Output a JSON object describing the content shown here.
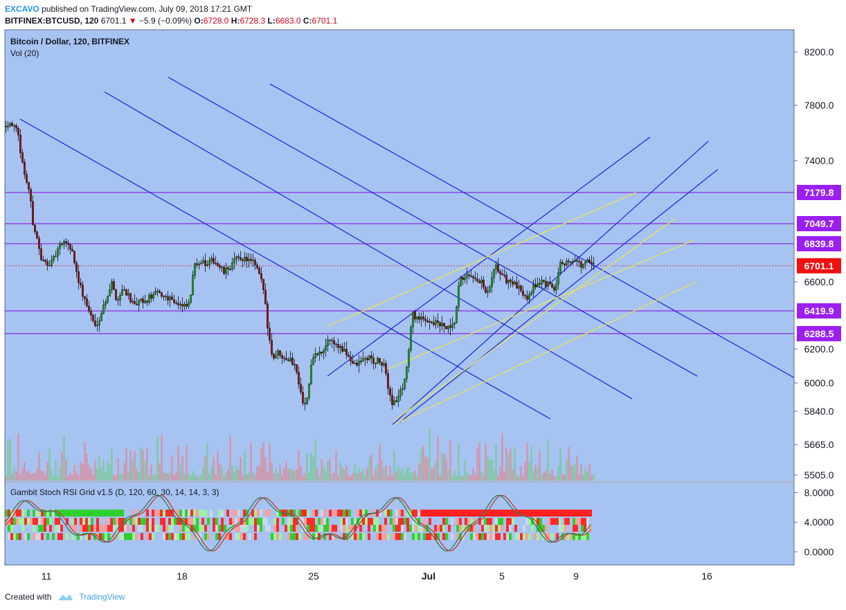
{
  "header": {
    "author": "EXCAVO",
    "published_text": "published on TradingView.com, July 09, 2018 17:21 GMT",
    "symbol": "BITFINEX:BTCUSD, 120",
    "last": "6701.1",
    "change": "−5.9 (−0.09%)",
    "o_label": "O:",
    "o": "6728.0",
    "h_label": "H:",
    "h": "6728.3",
    "l_label": "L:",
    "l": "6683.0",
    "c_label": "C:",
    "c": "6701.1"
  },
  "legend": {
    "title": "Bitcoin / Dollar, 120, BITFINEX",
    "volume": "Vol (20)"
  },
  "indicator": {
    "title": "Gambit Stoch RSI Grid v1.5 (D, 120, 60, 30, 14, 14, 3, 3)"
  },
  "footer": {
    "created_with": "Created with",
    "brand": "TradingView"
  },
  "colors": {
    "background": "#a7c3f2",
    "trendline": "#1a22d9",
    "channel": "#e8e84a",
    "level": "#8a2be2",
    "level_badge": "#9a1ff0",
    "last_badge": "#f01010",
    "candle_up": "#22a02a",
    "candle_down": "#8b1a1a"
  },
  "chart_data": [
    {
      "type": "candlestick",
      "symbol": "BITFINEX:BTCUSD",
      "interval": "120",
      "x_ticks": [
        "11",
        "18",
        "25",
        "Jul",
        "5",
        "9",
        "16"
      ],
      "y_ticks": [
        5505.0,
        5665.0,
        5840.0,
        6000.0,
        6200.0,
        6600.0,
        7400.0,
        7800.0,
        8200.0
      ],
      "y_tick_labels": [
        "5505.0",
        "5665.0",
        "5840.0",
        "6000.0",
        "6200.0",
        "6600.0",
        "7400.0",
        "7800.0",
        "8200.0"
      ],
      "ylim": [
        5480,
        8330
      ],
      "horizontal_levels": [
        {
          "value": 7179.8,
          "label": "7179.8"
        },
        {
          "value": 7049.7,
          "label": "7049.7"
        },
        {
          "value": 6839.8,
          "label": "6839.8"
        },
        {
          "value": 6419.9,
          "label": "6419.9"
        },
        {
          "value": 6288.5,
          "label": "6288.5"
        }
      ],
      "last_price": {
        "value": 6701.1,
        "label": "6701.1"
      },
      "price_path": [
        [
          0,
          7650
        ],
        [
          10,
          7680
        ],
        [
          20,
          7600
        ],
        [
          28,
          7350
        ],
        [
          36,
          7200
        ],
        [
          46,
          6950
        ],
        [
          54,
          6730
        ],
        [
          62,
          6720
        ],
        [
          70,
          6720
        ],
        [
          80,
          6820
        ],
        [
          90,
          6860
        ],
        [
          100,
          6780
        ],
        [
          106,
          6640
        ],
        [
          114,
          6520
        ],
        [
          122,
          6430
        ],
        [
          132,
          6330
        ],
        [
          140,
          6400
        ],
        [
          148,
          6500
        ],
        [
          156,
          6590
        ],
        [
          164,
          6480
        ],
        [
          172,
          6560
        ],
        [
          180,
          6520
        ],
        [
          188,
          6440
        ],
        [
          196,
          6480
        ],
        [
          204,
          6470
        ],
        [
          212,
          6510
        ],
        [
          222,
          6530
        ],
        [
          232,
          6510
        ],
        [
          242,
          6500
        ],
        [
          252,
          6460
        ],
        [
          260,
          6440
        ],
        [
          268,
          6460
        ],
        [
          276,
          6720
        ],
        [
          284,
          6730
        ],
        [
          294,
          6700
        ],
        [
          302,
          6740
        ],
        [
          310,
          6700
        ],
        [
          318,
          6660
        ],
        [
          326,
          6690
        ],
        [
          334,
          6740
        ],
        [
          344,
          6750
        ],
        [
          352,
          6740
        ],
        [
          360,
          6720
        ],
        [
          368,
          6660
        ],
        [
          376,
          6540
        ],
        [
          382,
          6300
        ],
        [
          388,
          6150
        ],
        [
          396,
          6180
        ],
        [
          404,
          6160
        ],
        [
          412,
          6140
        ],
        [
          420,
          6110
        ],
        [
          428,
          5980
        ],
        [
          434,
          5860
        ],
        [
          440,
          5950
        ],
        [
          446,
          6160
        ],
        [
          454,
          6170
        ],
        [
          462,
          6180
        ],
        [
          468,
          6260
        ],
        [
          476,
          6240
        ],
        [
          484,
          6210
        ],
        [
          492,
          6180
        ],
        [
          498,
          6160
        ],
        [
          506,
          6100
        ],
        [
          514,
          6120
        ],
        [
          520,
          6140
        ],
        [
          528,
          6150
        ],
        [
          536,
          6120
        ],
        [
          542,
          6130
        ],
        [
          550,
          6090
        ],
        [
          556,
          5960
        ],
        [
          562,
          5880
        ],
        [
          570,
          5920
        ],
        [
          578,
          6000
        ],
        [
          584,
          6150
        ],
        [
          590,
          6400
        ],
        [
          598,
          6380
        ],
        [
          606,
          6360
        ],
        [
          614,
          6370
        ],
        [
          622,
          6350
        ],
        [
          630,
          6340
        ],
        [
          638,
          6320
        ],
        [
          646,
          6310
        ],
        [
          652,
          6360
        ],
        [
          658,
          6600
        ],
        [
          666,
          6640
        ],
        [
          674,
          6620
        ],
        [
          682,
          6600
        ],
        [
          690,
          6600
        ],
        [
          696,
          6520
        ],
        [
          702,
          6560
        ],
        [
          710,
          6700
        ],
        [
          718,
          6650
        ],
        [
          726,
          6610
        ],
        [
          734,
          6600
        ],
        [
          740,
          6570
        ],
        [
          748,
          6540
        ],
        [
          756,
          6510
        ],
        [
          762,
          6550
        ],
        [
          770,
          6590
        ],
        [
          778,
          6600
        ],
        [
          786,
          6580
        ],
        [
          792,
          6560
        ],
        [
          798,
          6570
        ],
        [
          804,
          6740
        ],
        [
          812,
          6720
        ],
        [
          820,
          6740
        ],
        [
          828,
          6720
        ],
        [
          836,
          6700
        ],
        [
          844,
          6730
        ],
        [
          852,
          6701
        ]
      ],
      "trendlines": [
        {
          "color": "trendline",
          "from": [
            22,
            7700
          ],
          "to": [
            788,
            5800
          ]
        },
        {
          "color": "trendline",
          "from": [
            144,
            7900
          ],
          "to": [
            906,
            5910
          ]
        },
        {
          "color": "trendline",
          "from": [
            236,
            8010
          ],
          "to": [
            1000,
            6040
          ]
        },
        {
          "color": "trendline",
          "from": [
            383,
            7960
          ],
          "to": [
            1147,
            6015
          ]
        },
        {
          "color": "trendline",
          "from": [
            466,
            6040
          ],
          "to": [
            932,
            7570
          ]
        },
        {
          "color": "trendline",
          "from": [
            560,
            5770
          ],
          "to": [
            1016,
            7540
          ]
        },
        {
          "color": "trendline",
          "from": [
            570,
            5780
          ],
          "to": [
            1030,
            7340
          ]
        },
        {
          "color": "channel",
          "from": [
            466,
            6330
          ],
          "to": [
            912,
            7180
          ]
        },
        {
          "color": "channel",
          "from": [
            552,
            6080
          ],
          "to": [
            996,
            6880
          ]
        },
        {
          "color": "channel",
          "from": [
            562,
            5790
          ],
          "to": [
            968,
            7070
          ]
        },
        {
          "color": "channel",
          "from": [
            562,
            5770
          ],
          "to": [
            998,
            6600
          ]
        }
      ],
      "volume": {
        "label": "Vol (20)"
      }
    },
    {
      "type": "heatmap",
      "title": "Gambit Stoch RSI Grid v1.5 (D, 120, 60, 30, 14, 14, 3, 3)",
      "y_ticks": [
        0,
        4,
        8
      ],
      "y_tick_labels": [
        "0.0000",
        "4.0000",
        "8.0000"
      ],
      "ylim": [
        -1,
        9.2
      ]
    }
  ]
}
